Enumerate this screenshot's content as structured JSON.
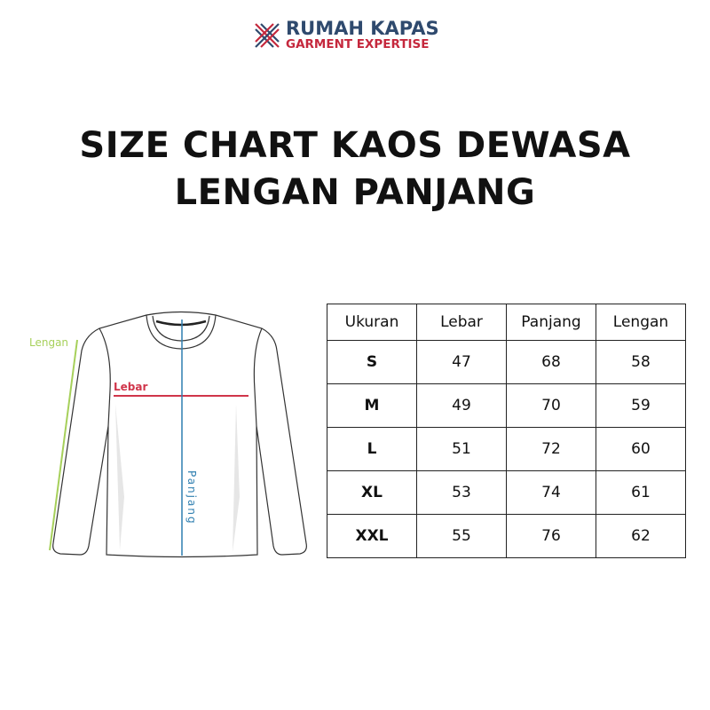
{
  "logo": {
    "brand": "RUMAH KAPAS",
    "tagline": "GARMENT EXPERTISE",
    "colors": {
      "brand": "#2f4a6e",
      "tagline": "#c5283d"
    }
  },
  "title": {
    "line1": "SIZE CHART KAOS DEWASA",
    "line2": "LENGAN PANJANG"
  },
  "diagram": {
    "labels": {
      "sleeve": "Lengan",
      "width": "Lebar",
      "length": "Panjang"
    },
    "colors": {
      "sleeve": "#a6d05a",
      "width": "#d0354a",
      "length": "#2f7fb0"
    }
  },
  "size_table": {
    "headers": [
      "Ukuran",
      "Lebar",
      "Panjang",
      "Lengan"
    ],
    "rows": [
      [
        "S",
        "47",
        "68",
        "58"
      ],
      [
        "M",
        "49",
        "70",
        "59"
      ],
      [
        "L",
        "51",
        "72",
        "60"
      ],
      [
        "XL",
        "53",
        "74",
        "61"
      ],
      [
        "XXL",
        "55",
        "76",
        "62"
      ]
    ]
  }
}
